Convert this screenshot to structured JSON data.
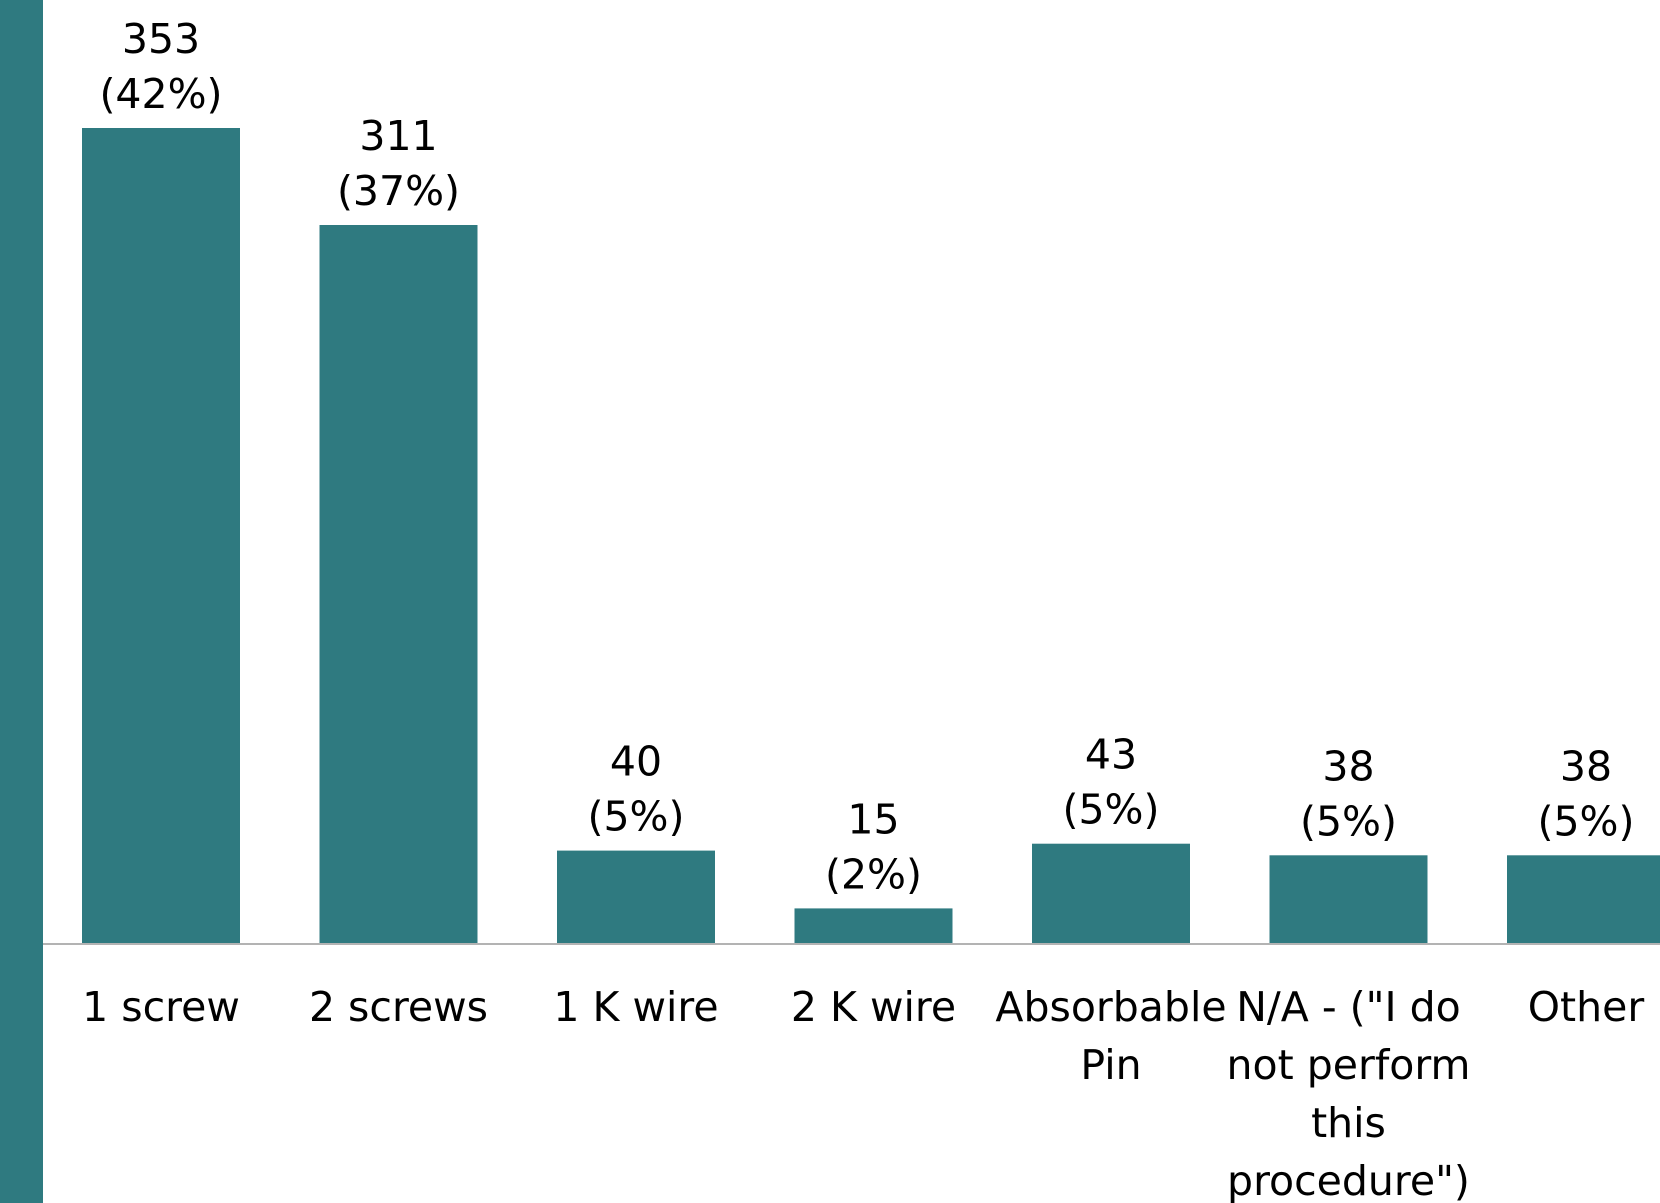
{
  "colors": {
    "bar": "#2f7a80",
    "accent": "#2f7a80",
    "axis": "#b3b3b3",
    "text": "#000000"
  },
  "chart_data": {
    "type": "bar",
    "title": "",
    "xlabel": "",
    "ylabel": "",
    "ylim": [
      0,
      400
    ],
    "grid": false,
    "categories": [
      [
        "1 screw"
      ],
      [
        "2 screws"
      ],
      [
        "1 K wire"
      ],
      [
        "2 K wire"
      ],
      [
        "Absorbable",
        "Pin"
      ],
      [
        "N/A - (\"I do",
        "not perform",
        "this",
        "procedure\")"
      ],
      [
        "Other"
      ]
    ],
    "values": [
      353,
      311,
      40,
      15,
      43,
      38,
      38
    ],
    "data_labels": [
      [
        "353",
        "(42%)"
      ],
      [
        "311",
        "(37%)"
      ],
      [
        "40",
        "(5%)"
      ],
      [
        "15",
        "(2%)"
      ],
      [
        "43",
        "(5%)"
      ],
      [
        "38",
        "(5%)"
      ],
      [
        "38",
        "(5%)"
      ]
    ]
  }
}
